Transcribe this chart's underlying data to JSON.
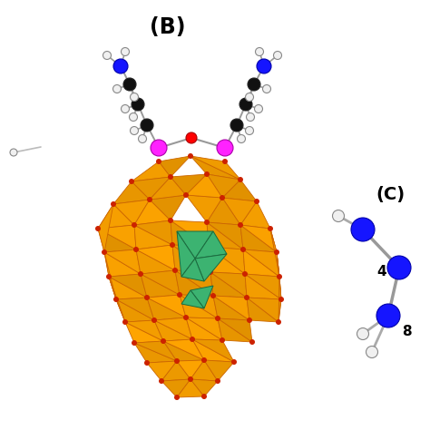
{
  "title_B": "(B)",
  "title_C": "(C)",
  "bg_color": "#ffffff",
  "label_4": "4",
  "label_8": "8",
  "orange": "#FFA500",
  "dark_orange": "#B8600A",
  "orange_edge": "#CC6600",
  "teal": "#3CB371",
  "teal_dark": "#1a6b40",
  "magenta": "#FF22FF",
  "red_atom": "#FF0000",
  "blue_atom": "#1515FF",
  "black_atom": "#111111",
  "white_atom": "#F0F0F0",
  "gray_bond": "#999999",
  "vertex_red": "#CC2200"
}
